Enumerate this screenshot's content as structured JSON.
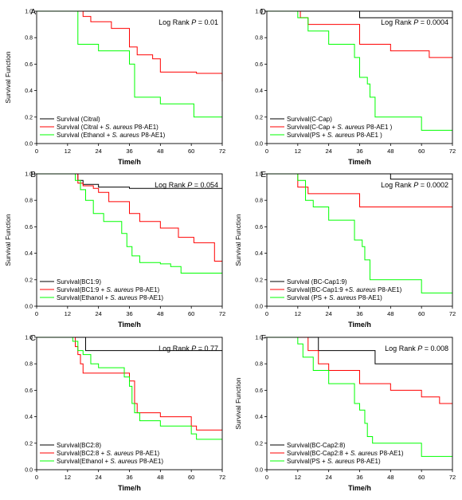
{
  "chart_data": [
    {
      "panel_label": "A",
      "type": "line",
      "ylabel": "Survival Function",
      "xlabel": "Time/h",
      "xlim": [
        0,
        72
      ],
      "ylim": [
        0,
        1.0
      ],
      "xticks": [
        0,
        12,
        24,
        36,
        48,
        60,
        72
      ],
      "yticks": [
        0.0,
        0.2,
        0.4,
        0.6,
        0.8,
        1.0
      ],
      "annotation_prefix": "Log Rank ",
      "annotation_p": "P",
      "annotation_value": " = 0.01",
      "annotation_position": "top-right",
      "legend_position": "bottom-left",
      "series": [
        {
          "legend_prefix": "Survival (Citral)",
          "legend_species": "",
          "legend_suffix": "",
          "color": "#000000",
          "steps": [
            [
              0,
              1.0
            ],
            [
              72,
              0.98
            ]
          ]
        },
        {
          "legend_prefix": "Survival (Citral + ",
          "legend_species": "S. aureus",
          "legend_suffix": " P8-AE1)",
          "color": "#ff0000",
          "steps": [
            [
              0,
              1.0
            ],
            [
              18,
              0.96
            ],
            [
              21,
              0.92
            ],
            [
              29,
              0.87
            ],
            [
              36,
              0.73
            ],
            [
              39,
              0.67
            ],
            [
              45,
              0.64
            ],
            [
              48,
              0.54
            ],
            [
              62,
              0.53
            ],
            [
              67,
              0.53
            ],
            [
              72,
              0.47
            ]
          ]
        },
        {
          "legend_prefix": "Survival (Ethanol + ",
          "legend_species": "S. aureus",
          "legend_suffix": " P8-AE1)",
          "color": "#00ff00",
          "steps": [
            [
              0,
              1.0
            ],
            [
              16,
              0.75
            ],
            [
              24,
              0.7
            ],
            [
              36,
              0.6
            ],
            [
              38,
              0.35
            ],
            [
              48,
              0.3
            ],
            [
              58,
              0.3
            ],
            [
              61,
              0.2
            ],
            [
              72,
              0.2
            ]
          ]
        }
      ]
    },
    {
      "panel_label": "D",
      "type": "line",
      "ylabel": "",
      "xlabel": "Time/h",
      "xlim": [
        0,
        72
      ],
      "ylim": [
        0,
        1.0
      ],
      "xticks": [
        0,
        12,
        24,
        36,
        48,
        60,
        72
      ],
      "yticks": [
        0.0,
        0.2,
        0.4,
        0.6,
        0.8,
        1.0
      ],
      "annotation_prefix": "Log Rank ",
      "annotation_p": "P",
      "annotation_value": " = 0.0004",
      "annotation_position": "top-right",
      "legend_position": "bottom-left",
      "series": [
        {
          "legend_prefix": "Survival(C-Cap)",
          "legend_species": "",
          "legend_suffix": "",
          "color": "#000000",
          "steps": [
            [
              0,
              1.0
            ],
            [
              36,
              0.95
            ],
            [
              72,
              0.95
            ]
          ]
        },
        {
          "legend_prefix": "Survival(C-Cap + ",
          "legend_species": "S. aureus",
          "legend_suffix": " P8-AE1 )",
          "color": "#ff0000",
          "steps": [
            [
              0,
              1.0
            ],
            [
              13,
              0.95
            ],
            [
              16,
              0.9
            ],
            [
              24,
              0.9
            ],
            [
              36,
              0.75
            ],
            [
              48,
              0.7
            ],
            [
              63,
              0.65
            ],
            [
              72,
              0.65
            ]
          ]
        },
        {
          "legend_prefix": "Survival(PS + ",
          "legend_species": "S. aureus",
          "legend_suffix": " P8-AE1 )",
          "color": "#00ff00",
          "steps": [
            [
              0,
              1.0
            ],
            [
              12,
              0.95
            ],
            [
              16,
              0.85
            ],
            [
              24,
              0.75
            ],
            [
              34,
              0.65
            ],
            [
              36,
              0.5
            ],
            [
              39,
              0.45
            ],
            [
              40,
              0.35
            ],
            [
              42,
              0.2
            ],
            [
              60,
              0.1
            ],
            [
              72,
              0.1
            ]
          ]
        }
      ]
    },
    {
      "panel_label": "B",
      "type": "line",
      "ylabel": "Survival Function",
      "xlabel": "Time/h",
      "xlim": [
        0,
        72
      ],
      "ylim": [
        0,
        1.0
      ],
      "xticks": [
        0,
        12,
        24,
        36,
        48,
        60,
        72
      ],
      "yticks": [
        0.0,
        0.2,
        0.4,
        0.6,
        0.8,
        1.0
      ],
      "annotation_prefix": "Log Rank ",
      "annotation_p": "P",
      "annotation_value": " = 0.054",
      "annotation_position": "top-right",
      "legend_position": "bottom-left",
      "series": [
        {
          "legend_prefix": "Survival(BC1:9)",
          "legend_species": "",
          "legend_suffix": "",
          "color": "#000000",
          "steps": [
            [
              0,
              1.0
            ],
            [
              16,
              0.95
            ],
            [
              18,
              0.92
            ],
            [
              24,
              0.9
            ],
            [
              36,
              0.89
            ],
            [
              72,
              0.89
            ]
          ]
        },
        {
          "legend_prefix": "Survival(BC1:9 + ",
          "legend_species": "S. aureus",
          "legend_suffix": " P8-AE1)",
          "color": "#ff0000",
          "steps": [
            [
              0,
              1.0
            ],
            [
              16,
              0.93
            ],
            [
              18,
              0.91
            ],
            [
              22,
              0.89
            ],
            [
              24,
              0.86
            ],
            [
              28,
              0.79
            ],
            [
              36,
              0.7
            ],
            [
              40,
              0.64
            ],
            [
              48,
              0.59
            ],
            [
              55,
              0.52
            ],
            [
              61,
              0.48
            ],
            [
              69,
              0.34
            ],
            [
              72,
              0.34
            ]
          ]
        },
        {
          "legend_prefix": "Survival(Ethanol + ",
          "legend_species": "S. aureus",
          "legend_suffix": " P8-AE1)",
          "color": "#00ff00",
          "steps": [
            [
              0,
              1.0
            ],
            [
              15,
              0.95
            ],
            [
              17,
              0.88
            ],
            [
              19,
              0.8
            ],
            [
              22,
              0.7
            ],
            [
              26,
              0.64
            ],
            [
              33,
              0.55
            ],
            [
              35,
              0.45
            ],
            [
              37,
              0.38
            ],
            [
              40,
              0.33
            ],
            [
              48,
              0.32
            ],
            [
              52,
              0.3
            ],
            [
              56,
              0.25
            ],
            [
              72,
              0.25
            ]
          ]
        }
      ]
    },
    {
      "panel_label": "E",
      "type": "line",
      "ylabel": "Survival Function",
      "xlabel": "Time/h",
      "xlim": [
        0,
        72
      ],
      "ylim": [
        0,
        1.0
      ],
      "xticks": [
        0,
        12,
        24,
        36,
        48,
        60,
        72
      ],
      "yticks": [
        0.0,
        0.2,
        0.4,
        0.6,
        0.8,
        1.0
      ],
      "annotation_prefix": "Log Rank ",
      "annotation_p": "P",
      "annotation_value": " = 0.0002",
      "annotation_position": "top-right",
      "legend_position": "bottom-left",
      "series": [
        {
          "legend_prefix": "Survival (BC-Cap1:9)",
          "legend_species": "",
          "legend_suffix": "",
          "color": "#000000",
          "steps": [
            [
              0,
              1.0
            ],
            [
              48,
              0.96
            ],
            [
              72,
              0.96
            ]
          ]
        },
        {
          "legend_prefix": "Survival(BC-Cap1:9 +",
          "legend_species": "S. aureus",
          "legend_suffix": " P8-AE1)",
          "color": "#ff0000",
          "steps": [
            [
              0,
              1.0
            ],
            [
              12,
              0.9
            ],
            [
              16,
              0.85
            ],
            [
              24,
              0.85
            ],
            [
              36,
              0.75
            ],
            [
              72,
              0.75
            ]
          ]
        },
        {
          "legend_prefix": "Survival (PS + ",
          "legend_species": "S. aureus",
          "legend_suffix": " P8-AE1)",
          "color": "#00ff00",
          "steps": [
            [
              0,
              1.0
            ],
            [
              12,
              0.95
            ],
            [
              15,
              0.8
            ],
            [
              18,
              0.75
            ],
            [
              24,
              0.65
            ],
            [
              34,
              0.5
            ],
            [
              37,
              0.45
            ],
            [
              38,
              0.35
            ],
            [
              40,
              0.2
            ],
            [
              60,
              0.1
            ],
            [
              72,
              0.1
            ]
          ]
        }
      ]
    },
    {
      "panel_label": "C",
      "type": "line",
      "ylabel": "",
      "xlabel": "Time/h",
      "xlim": [
        0,
        72
      ],
      "ylim": [
        0,
        1.0
      ],
      "xticks": [
        0,
        12,
        24,
        36,
        48,
        60,
        72
      ],
      "yticks": [
        0.0,
        0.2,
        0.4,
        0.6,
        0.8,
        1.0
      ],
      "annotation_prefix": "Log Rank ",
      "annotation_p": "P",
      "annotation_value": " = 0.77",
      "annotation_position": "top-right",
      "legend_position": "bottom-left",
      "series": [
        {
          "legend_prefix": "Survival(BC2:8)",
          "legend_species": "",
          "legend_suffix": "",
          "color": "#000000",
          "steps": [
            [
              0,
              1.0
            ],
            [
              19,
              0.9
            ],
            [
              72,
              0.9
            ]
          ]
        },
        {
          "legend_prefix": "Survival(BC2:8 + ",
          "legend_species": "S. aureus",
          "legend_suffix": " P8-AE1)",
          "color": "#ff0000",
          "steps": [
            [
              0,
              1.0
            ],
            [
              15,
              0.93
            ],
            [
              16,
              0.87
            ],
            [
              17,
              0.8
            ],
            [
              18,
              0.73
            ],
            [
              36,
              0.67
            ],
            [
              38,
              0.5
            ],
            [
              39,
              0.43
            ],
            [
              48,
              0.4
            ],
            [
              60,
              0.33
            ],
            [
              62,
              0.3
            ],
            [
              72,
              0.3
            ]
          ]
        },
        {
          "legend_prefix": "Survival(Ethanol + ",
          "legend_species": "S. aureus",
          "legend_suffix": " P8-AE1)",
          "color": "#00ff00",
          "steps": [
            [
              0,
              1.0
            ],
            [
              14,
              0.97
            ],
            [
              16,
              0.9
            ],
            [
              18,
              0.87
            ],
            [
              21,
              0.8
            ],
            [
              24,
              0.77
            ],
            [
              34,
              0.7
            ],
            [
              36,
              0.63
            ],
            [
              37,
              0.5
            ],
            [
              38,
              0.43
            ],
            [
              40,
              0.37
            ],
            [
              48,
              0.33
            ],
            [
              60,
              0.27
            ],
            [
              62,
              0.23
            ],
            [
              72,
              0.23
            ]
          ]
        }
      ]
    },
    {
      "panel_label": "F",
      "type": "line",
      "ylabel": "Survival Function",
      "xlabel": "Time/h",
      "xlim": [
        0,
        72
      ],
      "ylim": [
        0,
        1.0
      ],
      "xticks": [
        0,
        12,
        24,
        36,
        48,
        60,
        72
      ],
      "yticks": [
        0.0,
        0.2,
        0.4,
        0.6,
        0.8,
        1.0
      ],
      "annotation_prefix": "Log Rank ",
      "annotation_p": "P",
      "annotation_value": " = 0.008",
      "annotation_position": "top-right",
      "legend_position": "bottom-left",
      "series": [
        {
          "legend_prefix": "Survival(BC-Cap2:8)",
          "legend_species": "",
          "legend_suffix": "",
          "color": "#000000",
          "steps": [
            [
              0,
              1.0
            ],
            [
              20,
              0.9
            ],
            [
              36,
              0.9
            ],
            [
              42,
              0.8
            ],
            [
              72,
              0.8
            ]
          ]
        },
        {
          "legend_prefix": "Survival(BC-Cap2:8 + ",
          "legend_species": "S. aureus",
          "legend_suffix": " P8-AE1)",
          "color": "#ff0000",
          "steps": [
            [
              0,
              1.0
            ],
            [
              16,
              0.9
            ],
            [
              20,
              0.8
            ],
            [
              24,
              0.75
            ],
            [
              36,
              0.65
            ],
            [
              48,
              0.6
            ],
            [
              60,
              0.55
            ],
            [
              67,
              0.5
            ],
            [
              72,
              0.5
            ]
          ]
        },
        {
          "legend_prefix": "Survival(PS + ",
          "legend_species": "S. aureus",
          "legend_suffix": " P8-AE1)",
          "color": "#00ff00",
          "steps": [
            [
              0,
              1.0
            ],
            [
              12,
              0.95
            ],
            [
              14,
              0.85
            ],
            [
              18,
              0.75
            ],
            [
              24,
              0.65
            ],
            [
              34,
              0.5
            ],
            [
              36,
              0.45
            ],
            [
              38,
              0.35
            ],
            [
              39,
              0.25
            ],
            [
              41,
              0.2
            ],
            [
              60,
              0.1
            ],
            [
              72,
              0.1
            ]
          ]
        }
      ]
    }
  ]
}
